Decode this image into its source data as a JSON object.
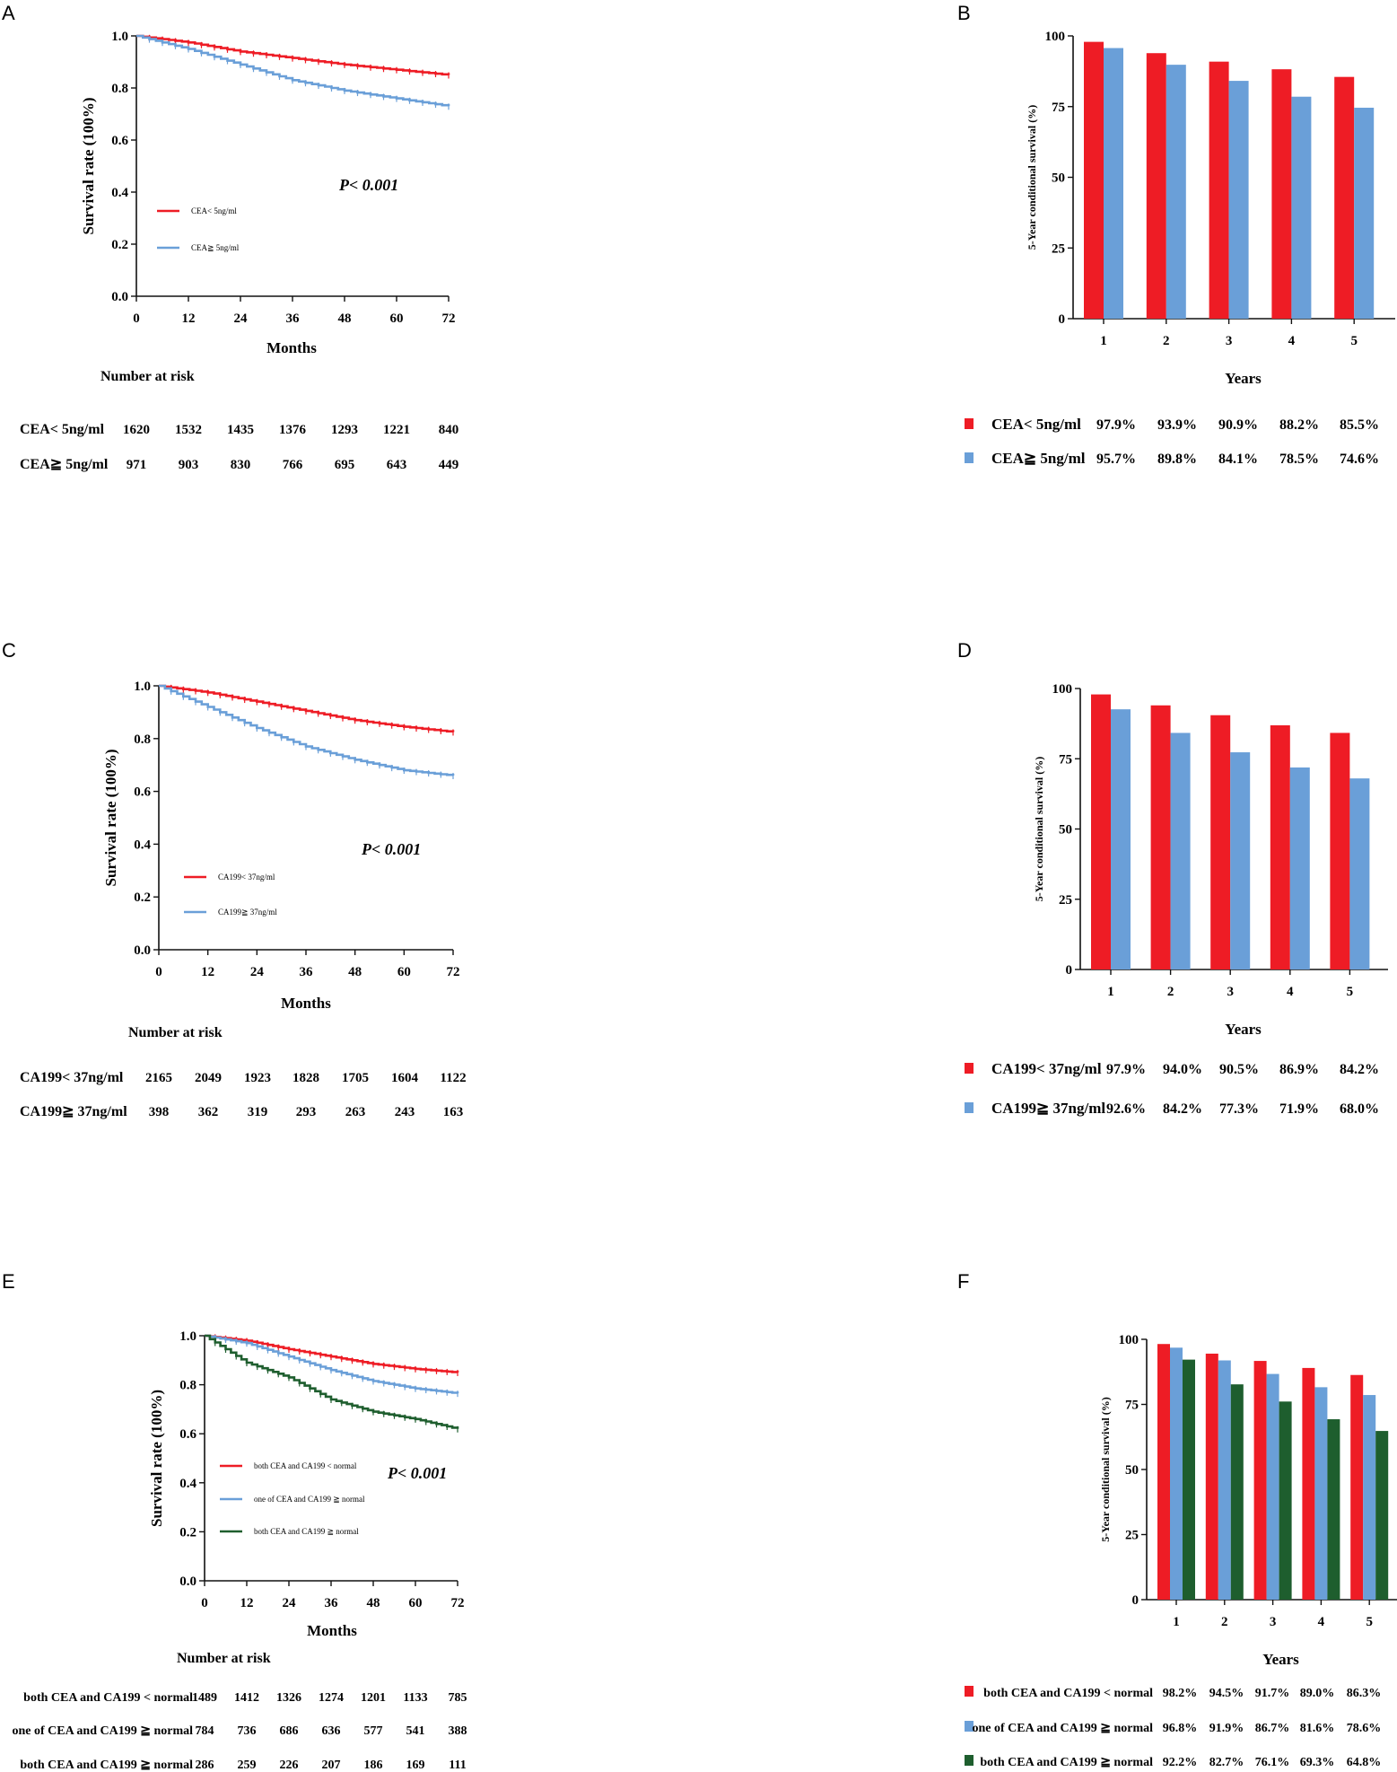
{
  "colors": {
    "red": "#ee1c25",
    "blue": "#6a9fd8",
    "green": "#1e5e2e"
  },
  "chart_data": [
    {
      "panel": "A",
      "type": "line",
      "xlabel": "Months",
      "ylabel": "Survival rate (100%)",
      "x_ticks": [
        "0",
        "12",
        "24",
        "36",
        "48",
        "60",
        "72"
      ],
      "y_ticks": [
        "0.0",
        "0.2",
        "0.4",
        "0.6",
        "0.8",
        "1.0"
      ],
      "xlim": [
        0,
        72
      ],
      "ylim": [
        0,
        1
      ],
      "p_value": "P< 0.001",
      "series": [
        {
          "name": "CEA< 5ng/ml",
          "color": "red",
          "x": [
            0,
            12,
            24,
            36,
            48,
            60,
            72
          ],
          "y": [
            1.0,
            0.975,
            0.94,
            0.915,
            0.89,
            0.87,
            0.85
          ]
        },
        {
          "name": "CEA≧ 5ng/ml",
          "color": "blue",
          "x": [
            0,
            12,
            24,
            36,
            48,
            60,
            72
          ],
          "y": [
            1.0,
            0.95,
            0.89,
            0.83,
            0.79,
            0.76,
            0.73
          ]
        }
      ],
      "risk_table": {
        "title": "Number at risk",
        "rows": [
          {
            "label": "CEA< 5ng/ml",
            "values": [
              "1620",
              "1532",
              "1435",
              "1376",
              "1293",
              "1221",
              "840"
            ]
          },
          {
            "label": "CEA≧ 5ng/ml",
            "values": [
              "971",
              "903",
              "830",
              "766",
              "695",
              "643",
              "449"
            ]
          }
        ]
      }
    },
    {
      "panel": "B",
      "type": "bar",
      "xlabel": "Years",
      "ylabel": "5-Year conditional survival (%)",
      "categories": [
        "1",
        "2",
        "3",
        "4",
        "5"
      ],
      "y_ticks": [
        "0",
        "25",
        "50",
        "75",
        "100"
      ],
      "ylim": [
        0,
        100
      ],
      "series": [
        {
          "name": "CEA< 5ng/ml",
          "color": "red",
          "values": [
            97.9,
            93.9,
            90.9,
            88.2,
            85.5
          ],
          "labels": [
            "97.9%",
            "93.9%",
            "90.9%",
            "88.2%",
            "85.5%"
          ]
        },
        {
          "name": "CEA≧ 5ng/ml",
          "color": "blue",
          "values": [
            95.7,
            89.8,
            84.1,
            78.5,
            74.6
          ],
          "labels": [
            "95.7%",
            "89.8%",
            "84.1%",
            "78.5%",
            "74.6%"
          ]
        }
      ]
    },
    {
      "panel": "C",
      "type": "line",
      "xlabel": "Months",
      "ylabel": "Survival rate (100%)",
      "x_ticks": [
        "0",
        "12",
        "24",
        "36",
        "48",
        "60",
        "72"
      ],
      "y_ticks": [
        "0.0",
        "0.2",
        "0.4",
        "0.6",
        "0.8",
        "1.0"
      ],
      "xlim": [
        0,
        72
      ],
      "ylim": [
        0,
        1
      ],
      "p_value": "P< 0.001",
      "series": [
        {
          "name": "CA199< 37ng/ml",
          "color": "red",
          "x": [
            0,
            12,
            24,
            36,
            48,
            60,
            72
          ],
          "y": [
            1.0,
            0.975,
            0.94,
            0.905,
            0.87,
            0.845,
            0.825
          ]
        },
        {
          "name": "CA199≧ 37ng/ml",
          "color": "blue",
          "x": [
            0,
            12,
            24,
            36,
            48,
            60,
            72
          ],
          "y": [
            1.0,
            0.92,
            0.84,
            0.77,
            0.72,
            0.68,
            0.66
          ]
        }
      ],
      "risk_table": {
        "title": "Number at risk",
        "rows": [
          {
            "label": "CA199< 37ng/ml",
            "values": [
              "2165",
              "2049",
              "1923",
              "1828",
              "1705",
              "1604",
              "1122"
            ]
          },
          {
            "label": "CA199≧ 37ng/ml",
            "values": [
              "398",
              "362",
              "319",
              "293",
              "263",
              "243",
              "163"
            ]
          }
        ]
      }
    },
    {
      "panel": "D",
      "type": "bar",
      "xlabel": "Years",
      "ylabel": "5-Year conditional survival (%)",
      "categories": [
        "1",
        "2",
        "3",
        "4",
        "5"
      ],
      "y_ticks": [
        "0",
        "25",
        "50",
        "75",
        "100"
      ],
      "ylim": [
        0,
        100
      ],
      "series": [
        {
          "name": "CA199< 37ng/ml",
          "color": "red",
          "values": [
            97.9,
            94.0,
            90.5,
            86.9,
            84.2
          ],
          "labels": [
            "97.9%",
            "94.0%",
            "90.5%",
            "86.9%",
            "84.2%"
          ]
        },
        {
          "name": "CA199≧ 37ng/ml",
          "color": "blue",
          "values": [
            92.6,
            84.2,
            77.3,
            71.9,
            68.0
          ],
          "labels": [
            "92.6%",
            "84.2%",
            "77.3%",
            "71.9%",
            "68.0%"
          ]
        }
      ]
    },
    {
      "panel": "E",
      "type": "line",
      "xlabel": "Months",
      "ylabel": "Survival rate (100%)",
      "x_ticks": [
        "0",
        "12",
        "24",
        "36",
        "48",
        "60",
        "72"
      ],
      "y_ticks": [
        "0.0",
        "0.2",
        "0.4",
        "0.6",
        "0.8",
        "1.0"
      ],
      "xlim": [
        0,
        72
      ],
      "ylim": [
        0,
        1
      ],
      "p_value": "P< 0.001",
      "series": [
        {
          "name": "both CEA and CA199 <  normal",
          "color": "red",
          "x": [
            0,
            12,
            24,
            36,
            48,
            60,
            72
          ],
          "y": [
            1.0,
            0.98,
            0.945,
            0.915,
            0.885,
            0.865,
            0.85
          ]
        },
        {
          "name": "one of CEA and CA199 ≧  normal",
          "color": "blue",
          "x": [
            0,
            12,
            24,
            36,
            48,
            60,
            72
          ],
          "y": [
            1.0,
            0.97,
            0.915,
            0.86,
            0.815,
            0.785,
            0.765
          ]
        },
        {
          "name": "both CEA and CA199 ≧  normal",
          "color": "green",
          "x": [
            0,
            12,
            24,
            36,
            48,
            60,
            72
          ],
          "y": [
            1.0,
            0.89,
            0.83,
            0.74,
            0.69,
            0.66,
            0.62
          ]
        }
      ],
      "risk_table": {
        "title": "Number at risk",
        "rows": [
          {
            "label": "both CEA and CA199 <  normal",
            "values": [
              "1489",
              "1412",
              "1326",
              "1274",
              "1201",
              "1133",
              "785"
            ]
          },
          {
            "label": "one of CEA and CA199 ≧  normal",
            "values": [
              "784",
              "736",
              "686",
              "636",
              "577",
              "541",
              "388"
            ]
          },
          {
            "label": "both CEA and CA199 ≧  normal",
            "values": [
              "286",
              "259",
              "226",
              "207",
              "186",
              "169",
              "111"
            ]
          }
        ]
      }
    },
    {
      "panel": "F",
      "type": "bar",
      "xlabel": "Years",
      "ylabel": "5-Year conditional survival (%)",
      "categories": [
        "1",
        "2",
        "3",
        "4",
        "5"
      ],
      "y_ticks": [
        "0",
        "25",
        "50",
        "75",
        "100"
      ],
      "ylim": [
        0,
        100
      ],
      "series": [
        {
          "name": "both CEA and CA199 <  normal",
          "color": "red",
          "values": [
            98.2,
            94.5,
            91.7,
            89.0,
            86.3
          ],
          "labels": [
            "98.2%",
            "94.5%",
            "91.7%",
            "89.0%",
            "86.3%"
          ]
        },
        {
          "name": "one of CEA and CA199 ≧  normal",
          "color": "blue",
          "values": [
            96.8,
            91.9,
            86.7,
            81.6,
            78.6
          ],
          "labels": [
            "96.8%",
            "91.9%",
            "86.7%",
            "81.6%",
            "78.6%"
          ]
        },
        {
          "name": "both CEA and CA199 ≧  normal",
          "color": "green",
          "values": [
            92.2,
            82.7,
            76.1,
            69.3,
            64.8
          ],
          "labels": [
            "92.2%",
            "82.7%",
            "76.1%",
            "69.3%",
            "64.8%"
          ]
        }
      ]
    }
  ]
}
